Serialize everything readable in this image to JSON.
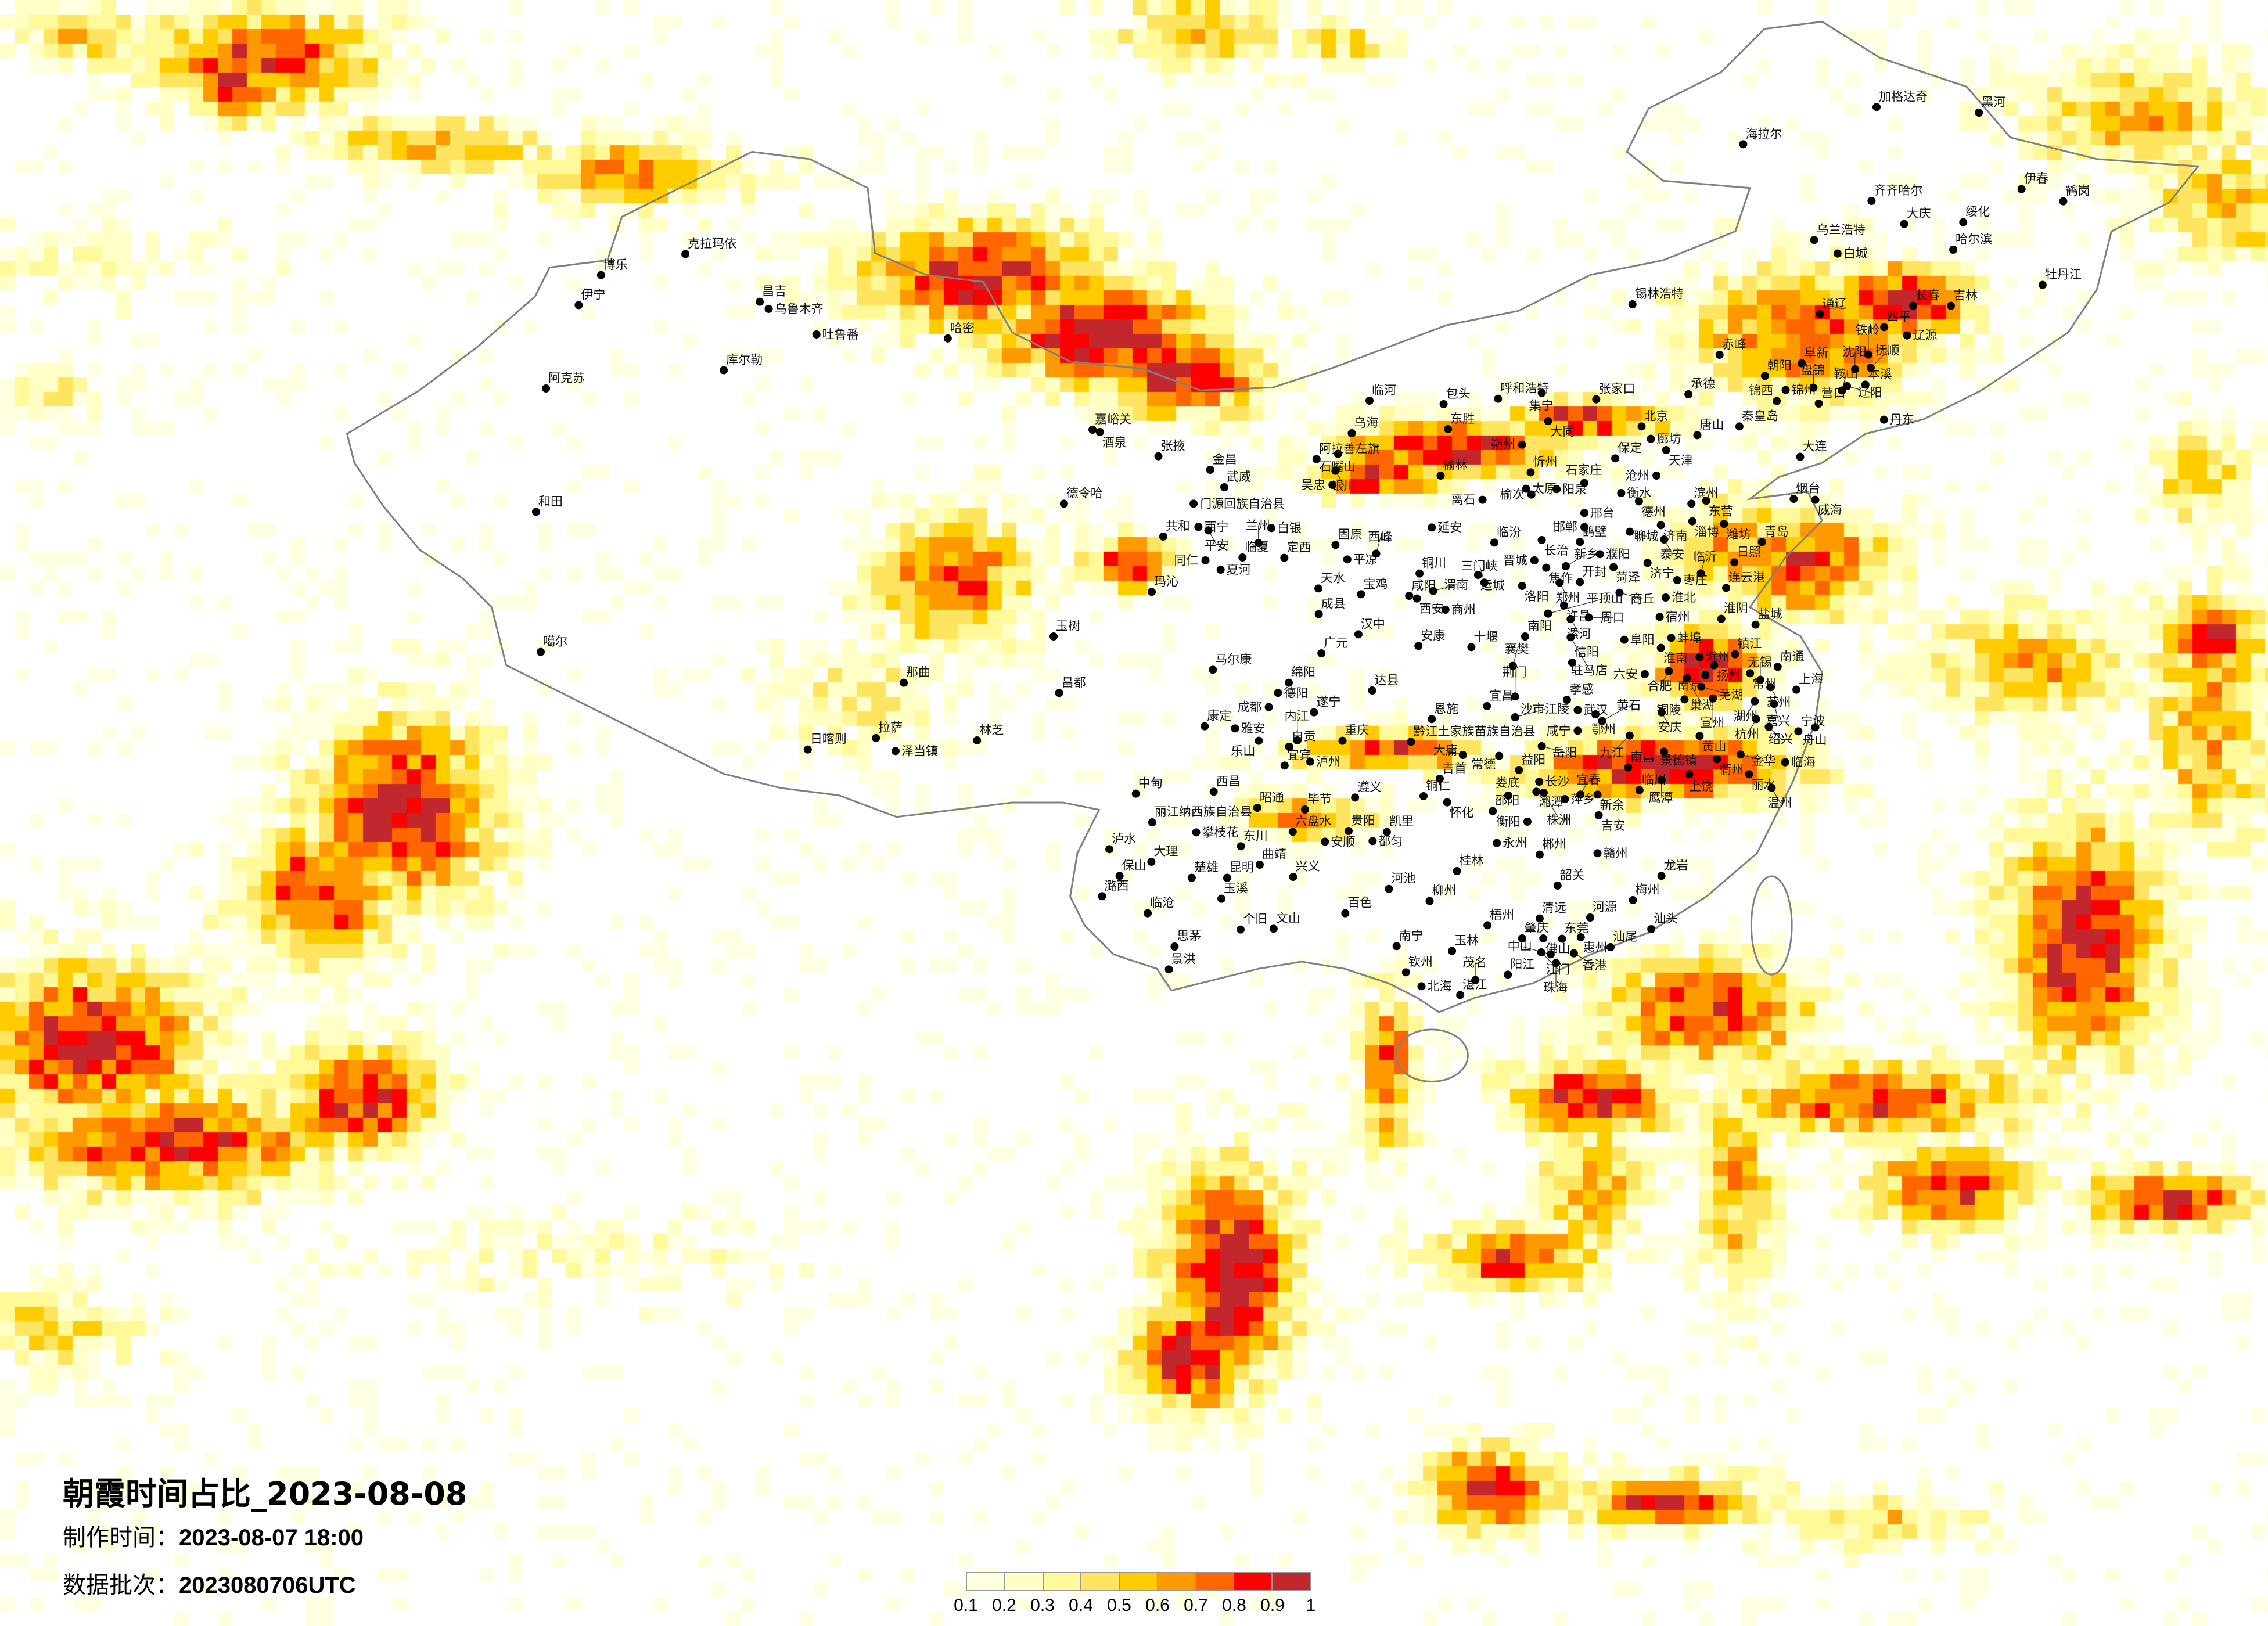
{
  "title": "朝霞时间占比_2023-08-08",
  "production_time": {
    "label": "制作时间：",
    "value": "2023-08-07 18:00"
  },
  "data_batch": {
    "label": "数据批次：",
    "value": "2023080706UTC"
  },
  "legend": {
    "ticks": [
      "0.1",
      "0.2",
      "0.3",
      "0.4",
      "0.5",
      "0.6",
      "0.7",
      "0.8",
      "0.9",
      "1"
    ],
    "colors": [
      "#FFFFE1",
      "#FFFFC6",
      "#FFF99A",
      "#FFE55F",
      "#FFCC00",
      "#FF9900",
      "#FF6600",
      "#FF0000",
      "#C1272D"
    ]
  },
  "map": {
    "border_color": "#808080",
    "city_marker": "black-dot",
    "city_groups": [
      [
        "克拉玛依",
        "博乐",
        "伊宁",
        "昌吉",
        "乌鲁木齐",
        "吐鲁番",
        "哈密",
        "库尔勒",
        "阿克苏",
        "和田"
      ],
      [
        "噶尔",
        "那曲",
        "拉萨",
        "泽当镇",
        "日喀则",
        "林芝"
      ],
      [
        "加格达奇",
        "黑河",
        "海拉尔",
        "齐齐哈尔",
        "大庆",
        "绥化",
        "哈尔滨",
        "伊春",
        "鹤岗",
        "乌兰浩特",
        "白城",
        "锡林浩特",
        "通辽",
        "长春",
        "吉林",
        "牡丹江",
        "四平"
      ],
      [
        "中甸",
        "西昌",
        "丽江纳西族自治县",
        "攀枝花",
        "昭通",
        "毕节",
        "遵义",
        "六盘水",
        "贵阳",
        "安顺",
        "凯里",
        "都匀",
        "泸水",
        "大理",
        "保山",
        "楚雄",
        "昆明",
        "曲靖",
        "东川",
        "兴义",
        "玉溪",
        "潞西",
        "临沧",
        "个旧",
        "文山",
        "思茅",
        "景洪",
        "百色",
        "河池",
        "柳州",
        "桂林",
        "南宁",
        "玉林",
        "钦州",
        "北海",
        "湛江",
        "茂名",
        "阳江",
        "梧州",
        "铜仁",
        "怀化",
        "吉首",
        "邵阳",
        "娄底",
        "益阳",
        "长沙",
        "湘潭",
        "株洲",
        "衡阳",
        "永州",
        "郴州",
        "韶关",
        "清远",
        "河源",
        "肇庆",
        "佛山",
        "东莞",
        "惠州",
        "江门",
        "中山",
        "香港",
        "珠海",
        "汕尾",
        "汕头",
        "梅州",
        "龙岩",
        "萍乡",
        "宜春",
        "新余",
        "吉安",
        "赣州",
        "南昌",
        "临川",
        "鹰潭",
        "宜宾",
        "泸州"
      ],
      [
        "嘉峪关",
        "酒泉",
        "张掖",
        "金昌",
        "武威",
        "门源回族自治县",
        "德令哈",
        "西宁",
        "平安",
        "共和",
        "同仁",
        "夏河",
        "临夏",
        "兰州",
        "定西",
        "白银",
        "固原",
        "平凉",
        "西峰",
        "阿拉善左旗",
        "石嘴山",
        "银川",
        "吴忠",
        "乌海",
        "临河",
        "包头",
        "东胜",
        "呼和浩特",
        "集宁",
        "张家口",
        "大同",
        "朔州",
        "榆林",
        "忻州",
        "太原",
        "榆次",
        "离石",
        "阳泉",
        "石家庄",
        "邢台",
        "邯郸",
        "延安",
        "临汾",
        "长治",
        "晋城",
        "鹤壁",
        "焦作",
        "新乡",
        "濮阳",
        "铜川",
        "运城"
      ],
      [
        "玛沁",
        "天水",
        "宝鸡",
        "成县",
        "汉中",
        "咸阳",
        "西安",
        "渭南",
        "商州",
        "安康",
        "十堰",
        "玉树",
        "昌都",
        "马尔康",
        "广元",
        "绵阳",
        "德阳",
        "成都",
        "遂宁",
        "达县",
        "康定",
        "雅安",
        "乐山",
        "自贡",
        "内江",
        "重庆",
        "恩施",
        "黔江土家族苗族自治县",
        "宜昌",
        "沙市江陵",
        "荆门",
        "襄樊",
        "南阳",
        "信阳",
        "孝感",
        "武汉",
        "鄂州",
        "黄石",
        "咸宁",
        "岳阳",
        "常德",
        "大庸",
        "三门峡",
        "洛阳",
        "郑州",
        "开封",
        "许昌",
        "平顶山",
        "漯河",
        "周口",
        "驻马店"
      ],
      [
        "赤峰",
        "承德",
        "北京",
        "廊坊",
        "天津",
        "唐山",
        "保定",
        "沧州",
        "衡水",
        "德州",
        "秦皇岛",
        "朝阳",
        "阜新",
        "锦州",
        "锦西",
        "盘锦",
        "营口",
        "鞍山",
        "辽阳",
        "本溪",
        "沈阳",
        "抚顺",
        "铁岭",
        "辽源",
        "丹东",
        "大连",
        "滨州",
        "东营",
        "淄博",
        "潍坊",
        "济南",
        "聊城",
        "泰安",
        "烟台",
        "威海",
        "青岛",
        "日照",
        "济宁",
        "菏泽"
      ],
      [
        "商丘",
        "枣庄",
        "临沂",
        "连云港",
        "淮北",
        "宿州",
        "淮阴",
        "盐城",
        "阜阳",
        "蚌埠",
        "淮南",
        "滁州",
        "镇江",
        "扬州",
        "南京",
        "南通",
        "常州",
        "无锡",
        "苏州",
        "上海",
        "六安",
        "合肥",
        "巢湖",
        "芜湖",
        "宣州",
        "湖州",
        "嘉兴",
        "杭州",
        "绍兴",
        "宁波",
        "舟山",
        "铜陵",
        "安庆",
        "九江",
        "黄山",
        "景德镇",
        "衢州",
        "金华",
        "临海",
        "丽水",
        "温州",
        "上饶"
      ]
    ]
  }
}
